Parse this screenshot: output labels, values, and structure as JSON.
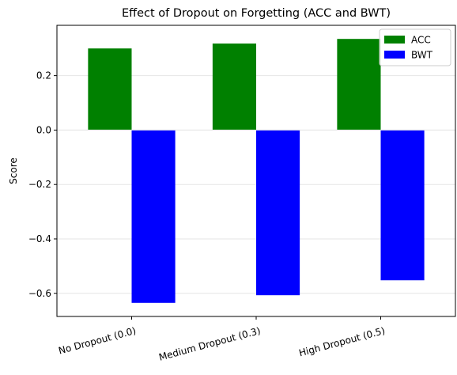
{
  "chart_data": {
    "type": "bar",
    "title": "Effect of Dropout on Forgetting (ACC and BWT)",
    "xlabel": "",
    "ylabel": "Score",
    "categories": [
      "No Dropout (0.0)",
      "Medium Dropout (0.3)",
      "High Dropout (0.5)"
    ],
    "series": [
      {
        "name": "ACC",
        "color": "#008000",
        "values": [
          0.3,
          0.318,
          0.335
        ]
      },
      {
        "name": "BWT",
        "color": "#0000ff",
        "values": [
          -0.635,
          -0.607,
          -0.552
        ]
      }
    ],
    "ylim": [
      -0.685,
      0.385
    ],
    "yticks": [
      {
        "value": 0.2,
        "label": "0.2"
      },
      {
        "value": 0.0,
        "label": "0.0"
      },
      {
        "value": -0.2,
        "label": "−0.2"
      },
      {
        "value": -0.4,
        "label": "−0.4"
      },
      {
        "value": -0.6,
        "label": "−0.6"
      }
    ],
    "grid": "horizontal",
    "legend": {
      "position": "top-right"
    }
  }
}
